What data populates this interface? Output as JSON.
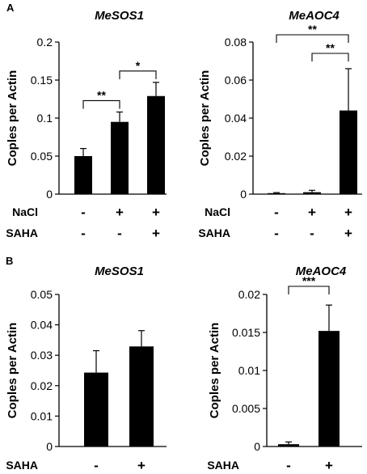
{
  "chart_data": [
    {
      "panel": "A",
      "type": "bar",
      "title": "MeSOS1",
      "ylabel": "Coples per Actin",
      "ylim": [
        0,
        0.2
      ],
      "yticks": [
        "0",
        "0.05",
        "0.1",
        "0.15",
        "0.2"
      ],
      "values": [
        0.05,
        0.095,
        0.129
      ],
      "errors": [
        0.01,
        0.013,
        0.018
      ],
      "conditions": [
        {
          "label": "NaCl",
          "marks": [
            "-",
            "+",
            "+"
          ]
        },
        {
          "label": "SAHA",
          "marks": [
            "-",
            "-",
            "+"
          ]
        }
      ],
      "significance": [
        {
          "from": 0,
          "to": 1,
          "label": "**"
        },
        {
          "from": 1,
          "to": 2,
          "label": "*"
        }
      ]
    },
    {
      "panel": "",
      "type": "bar",
      "title": "MeAOC4",
      "ylabel": "Coples per Actin",
      "ylim": [
        0,
        0.08
      ],
      "yticks": [
        "0",
        "0.02",
        "0.04",
        "0.06",
        "0.08"
      ],
      "values": [
        0.0005,
        0.001,
        0.044
      ],
      "errors": [
        0.0003,
        0.001,
        0.022
      ],
      "conditions": [
        {
          "label": "NaCl",
          "marks": [
            "-",
            "+",
            "+"
          ]
        },
        {
          "label": "SAHA",
          "marks": [
            "-",
            "-",
            "+"
          ]
        }
      ],
      "significance": [
        {
          "from": 0,
          "to": 2,
          "label": "**"
        },
        {
          "from": 1,
          "to": 2,
          "label": "**"
        }
      ]
    },
    {
      "panel": "B",
      "type": "bar",
      "title": "MeSOS1",
      "ylabel": "Coples per Actin",
      "ylim": [
        0,
        0.05
      ],
      "yticks": [
        "0",
        "0.01",
        "0.02",
        "0.03",
        "0.04",
        "0.05"
      ],
      "values": [
        0.0243,
        0.0329
      ],
      "errors": [
        0.0072,
        0.0052
      ],
      "conditions": [
        {
          "label": "SAHA",
          "marks": [
            "-",
            "+"
          ]
        }
      ],
      "significance": []
    },
    {
      "panel": "",
      "type": "bar",
      "title": "MeAOC4",
      "ylabel": "Coples per Actin",
      "ylim": [
        0,
        0.02
      ],
      "yticks": [
        "0",
        "0.005",
        "0.01",
        "0.015",
        "0.02"
      ],
      "values": [
        0.0003,
        0.0152
      ],
      "errors": [
        0.0003,
        0.0034
      ],
      "conditions": [
        {
          "label": "SAHA",
          "marks": [
            "-",
            "+"
          ]
        }
      ],
      "significance": [
        {
          "from": 0,
          "to": 1,
          "label": "***"
        }
      ]
    }
  ]
}
